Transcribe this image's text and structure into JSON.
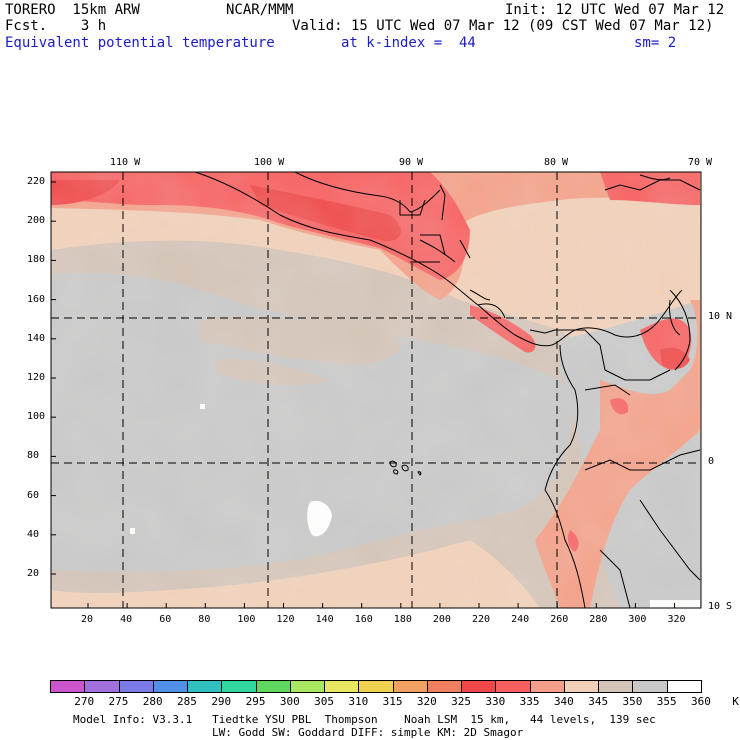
{
  "header": {
    "model": "TORERO  15km ARW",
    "fcst": "Fcst.    3 h",
    "center": "NCAR/MMM",
    "init": "Init: 12 UTC Wed 07 Mar 12",
    "valid": "Valid: 15 UTC Wed 07 Mar 12 (09 CST Wed 07 Mar 12)",
    "field": "Equivalent potential temperature",
    "level": "at k-index =  44",
    "smooth": "sm= 2"
  },
  "map": {
    "lon_labels": [
      "110 W",
      "100 W",
      "90 W",
      "80 W",
      "70 W"
    ],
    "lat_labels": [
      "10 N",
      "0",
      "10 S"
    ],
    "y_ticks": [
      "220",
      "200",
      "180",
      "160",
      "140",
      "120",
      "100",
      "80",
      "60",
      "40",
      "20"
    ],
    "x_ticks": [
      "20",
      "40",
      "60",
      "80",
      "100",
      "120",
      "140",
      "160",
      "180",
      "200",
      "220",
      "240",
      "260",
      "280",
      "300",
      "320"
    ]
  },
  "colorbar": {
    "labels": [
      "270",
      "275",
      "280",
      "285",
      "290",
      "295",
      "300",
      "305",
      "310",
      "315",
      "320",
      "325",
      "330",
      "335",
      "340",
      "345",
      "350",
      "355",
      "360",
      "K"
    ],
    "colors": [
      "#cc55cc",
      "#a070dd",
      "#7a7ae8",
      "#5090e8",
      "#30c0c0",
      "#30d8a0",
      "#60d860",
      "#a8e860",
      "#e8e860",
      "#f0d050",
      "#f0a060",
      "#f08060",
      "#f04848",
      "#f86060",
      "#f4a088",
      "#f2d0b8",
      "#d4c4b8",
      "#c8c8c8",
      "#ffffff"
    ]
  },
  "footer": {
    "line1": "Model Info: V3.3.1   Tiedtke YSU PBL  Thompson    Noah LSM  15 km,   44 levels,  139 sec",
    "line2": "LW: Godd SW: Goddard DIFF: simple KM: 2D Smagor"
  }
}
